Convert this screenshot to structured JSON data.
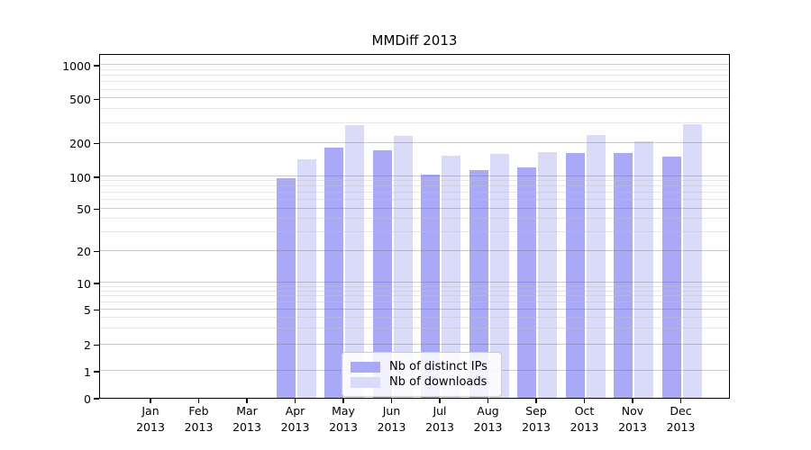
{
  "title": "MMDiff 2013",
  "chart_data": {
    "type": "bar",
    "title": "MMDiff 2013",
    "categories": [
      "Jan 2013",
      "Feb 2013",
      "Mar 2013",
      "Apr 2013",
      "May 2013",
      "Jun 2013",
      "Jul 2013",
      "Aug 2013",
      "Sep 2013",
      "Oct 2013",
      "Nov 2013",
      "Dec 2013"
    ],
    "series": [
      {
        "name": "Nb of distinct IPs",
        "color": "#a9a9f7",
        "values": [
          0,
          0,
          0,
          97,
          182,
          170,
          104,
          113,
          121,
          162,
          162,
          151
        ]
      },
      {
        "name": "Nb of downloads",
        "color": "#dadaf9",
        "values": [
          0,
          0,
          0,
          143,
          290,
          232,
          153,
          160,
          165,
          235,
          206,
          295
        ]
      }
    ],
    "yscale": "symlog",
    "yticks": [
      0,
      1,
      2,
      5,
      10,
      20,
      50,
      100,
      200,
      500,
      1000
    ],
    "ylim": [
      0,
      1300
    ],
    "xlabel": "",
    "ylabel": "",
    "grid": true,
    "legend_position": "lower center"
  }
}
